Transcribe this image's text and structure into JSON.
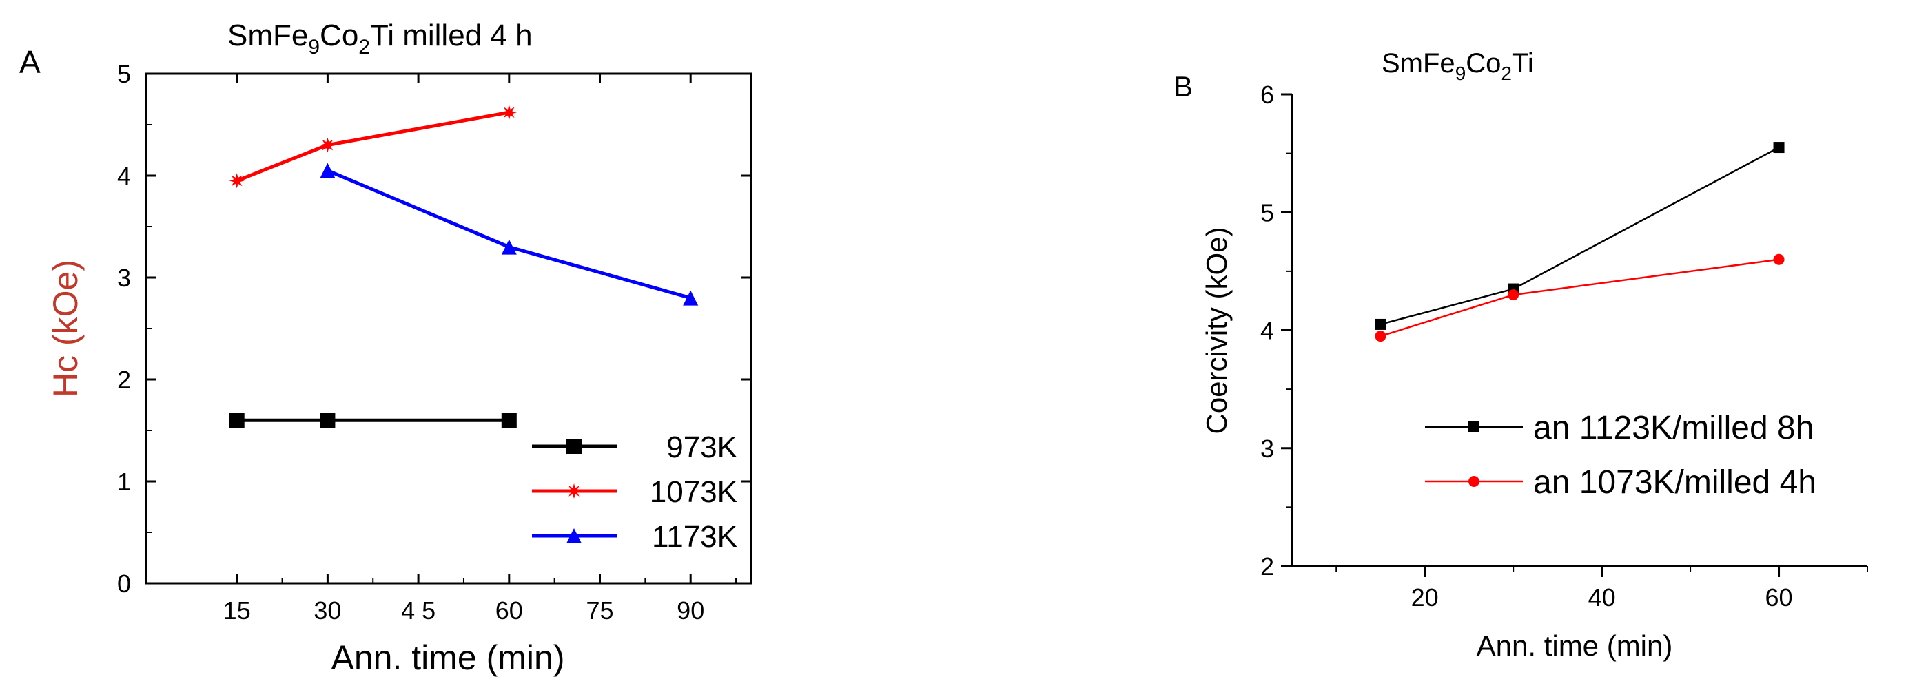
{
  "panels": {
    "a": {
      "label": "A",
      "title_base": "SmFe",
      "title_s1": "9",
      "title_mid": "Co",
      "title_s2": "2",
      "title_end": "Ti milled 4 h"
    },
    "b": {
      "label": "B",
      "title_base": "SmFe",
      "title_s1": "9",
      "title_mid": "Co",
      "title_s2": "2",
      "title_end": "Ti"
    }
  },
  "chart_data": [
    {
      "type": "line",
      "panel": "A",
      "title": "SmFe9Co2Ti milled 4 h",
      "xlabel": "Ann. time (min)",
      "ylabel": "Hc (kOe)",
      "xlim": [
        0,
        100
      ],
      "ylim": [
        0,
        5
      ],
      "xticks": [
        15,
        30,
        45,
        60,
        75,
        90
      ],
      "xtick_labels": [
        "15",
        "30",
        "4 5",
        "60",
        "75",
        "90"
      ],
      "yticks": [
        0,
        1,
        2,
        3,
        4,
        5
      ],
      "legend_position": "bottom-right",
      "series": [
        {
          "name": "973K",
          "color": "#000000",
          "marker": "square",
          "x": [
            15,
            30,
            60
          ],
          "y": [
            1.6,
            1.6,
            1.6
          ]
        },
        {
          "name": "1073K",
          "color": "#ff0000",
          "marker": "star",
          "x": [
            15,
            30,
            60
          ],
          "y": [
            3.95,
            4.3,
            4.62
          ]
        },
        {
          "name": "1173K",
          "color": "#0000ff",
          "marker": "triangle",
          "x": [
            30,
            60,
            90
          ],
          "y": [
            4.05,
            3.3,
            2.8
          ]
        }
      ]
    },
    {
      "type": "line",
      "panel": "B",
      "title": "SmFe9Co2Ti",
      "xlabel": "Ann. time (min)",
      "ylabel": "Coercivity (kOe)",
      "xlim": [
        5,
        70
      ],
      "ylim": [
        2,
        6
      ],
      "xticks": [
        20,
        40,
        60
      ],
      "yticks": [
        2,
        3,
        4,
        5,
        6
      ],
      "legend_position": "center-right",
      "series": [
        {
          "name": "an 1123K/milled 8h",
          "color": "#000000",
          "marker": "square",
          "x": [
            15,
            30,
            60
          ],
          "y": [
            4.05,
            4.35,
            5.55
          ]
        },
        {
          "name": "an 1073K/milled 4h",
          "color": "#ff0000",
          "marker": "circle",
          "x": [
            15,
            30,
            60
          ],
          "y": [
            3.95,
            4.3,
            4.6
          ]
        }
      ]
    }
  ]
}
